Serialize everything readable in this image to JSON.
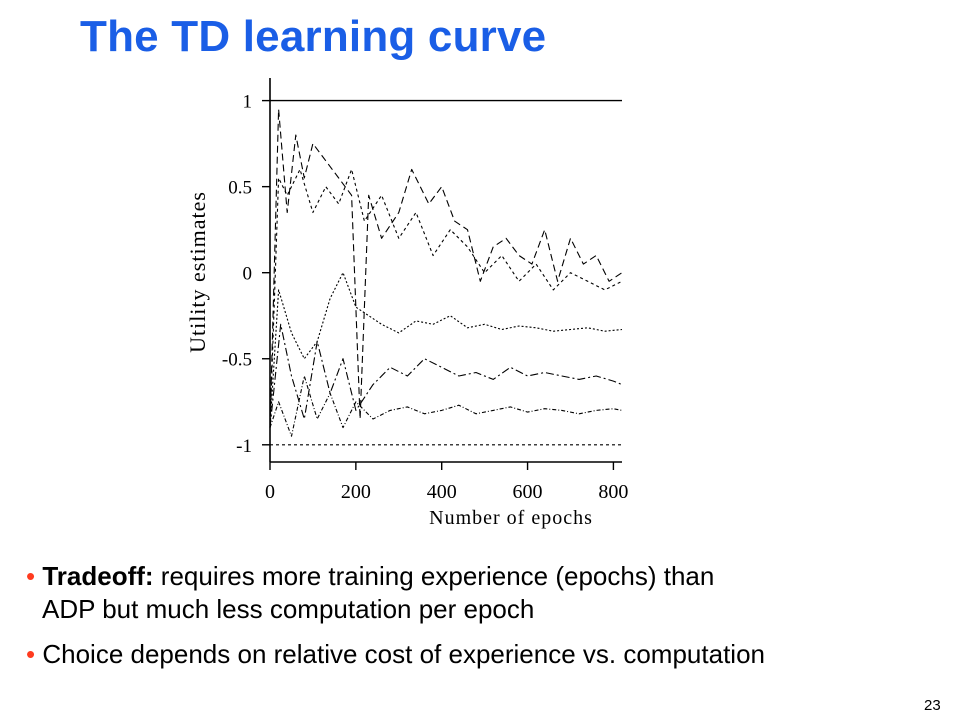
{
  "slide": {
    "title": "The TD learning curve",
    "page_number": "23",
    "accent_color": "#1a5ee6",
    "bullet_color": "#ff3b1f"
  },
  "bullets": [
    {
      "bold": "Tradeoff:",
      "text": " requires more training experience (epochs) than",
      "continuation": "ADP but much less computation per epoch"
    },
    {
      "bold": "",
      "text": "Choice depends on relative cost of experience vs. computation",
      "continuation": ""
    }
  ],
  "chart_data": {
    "type": "line",
    "xlabel": "Number of epochs",
    "ylabel": "Utility estimates",
    "xlim": [
      0,
      820
    ],
    "ylim": [
      -1.1,
      1.05
    ],
    "x_ticks": [
      "0",
      "200",
      "400",
      "600",
      "800"
    ],
    "y_ticks": [
      "1",
      "0.5",
      "0",
      "-0.5",
      "-1"
    ],
    "grid": false,
    "series": [
      {
        "dash": "solid",
        "x": [
          0,
          30,
          820
        ],
        "values": [
          1.0,
          1.0,
          1.0
        ]
      },
      {
        "dash": "7,4",
        "x": [
          0,
          20,
          40,
          60,
          80,
          100,
          130,
          160,
          190,
          210,
          230,
          260,
          300,
          330,
          370,
          400,
          430,
          460,
          490,
          520,
          550,
          580,
          610,
          640,
          670,
          700,
          730,
          760,
          790,
          820
        ],
        "values": [
          -0.9,
          0.95,
          0.35,
          0.8,
          0.55,
          0.75,
          0.65,
          0.55,
          0.45,
          -0.85,
          0.45,
          0.2,
          0.35,
          0.6,
          0.4,
          0.5,
          0.3,
          0.25,
          -0.05,
          0.15,
          0.2,
          0.1,
          0.05,
          0.25,
          -0.05,
          0.2,
          0.05,
          0.1,
          -0.05,
          0.0
        ]
      },
      {
        "dash": "3,3",
        "x": [
          0,
          20,
          40,
          70,
          100,
          130,
          160,
          190,
          220,
          260,
          300,
          340,
          380,
          420,
          460,
          500,
          540,
          580,
          620,
          660,
          700,
          740,
          780,
          820
        ],
        "values": [
          -0.9,
          0.55,
          0.45,
          0.6,
          0.35,
          0.5,
          0.4,
          0.6,
          0.3,
          0.45,
          0.2,
          0.35,
          0.1,
          0.25,
          0.15,
          0.0,
          0.1,
          -0.05,
          0.05,
          -0.1,
          0.0,
          -0.05,
          -0.1,
          -0.05
        ]
      },
      {
        "dash": "2,2",
        "x": [
          0,
          20,
          50,
          80,
          110,
          140,
          170,
          200,
          230,
          260,
          300,
          340,
          380,
          420,
          460,
          500,
          540,
          580,
          620,
          660,
          700,
          740,
          780,
          820
        ],
        "values": [
          -0.9,
          -0.1,
          -0.35,
          -0.5,
          -0.4,
          -0.15,
          0.0,
          -0.2,
          -0.25,
          -0.3,
          -0.35,
          -0.28,
          -0.3,
          -0.25,
          -0.32,
          -0.3,
          -0.33,
          -0.31,
          -0.32,
          -0.34,
          -0.33,
          -0.32,
          -0.34,
          -0.33
        ]
      },
      {
        "dash": "8,3,2,3",
        "x": [
          0,
          25,
          50,
          80,
          110,
          140,
          170,
          200,
          240,
          280,
          320,
          360,
          400,
          440,
          480,
          520,
          560,
          600,
          640,
          680,
          720,
          760,
          800,
          820
        ],
        "values": [
          -0.9,
          -0.3,
          -0.6,
          -0.85,
          -0.4,
          -0.7,
          -0.5,
          -0.8,
          -0.65,
          -0.55,
          -0.6,
          -0.5,
          -0.55,
          -0.6,
          -0.58,
          -0.62,
          -0.55,
          -0.6,
          -0.58,
          -0.6,
          -0.62,
          -0.6,
          -0.63,
          -0.65
        ]
      },
      {
        "dash": "4,2,1,2",
        "x": [
          0,
          20,
          50,
          80,
          110,
          140,
          170,
          200,
          240,
          280,
          320,
          360,
          400,
          440,
          480,
          520,
          560,
          600,
          640,
          680,
          720,
          760,
          800,
          820
        ],
        "values": [
          -0.9,
          -0.75,
          -0.95,
          -0.6,
          -0.85,
          -0.7,
          -0.9,
          -0.75,
          -0.85,
          -0.8,
          -0.78,
          -0.82,
          -0.8,
          -0.77,
          -0.82,
          -0.8,
          -0.78,
          -0.81,
          -0.79,
          -0.8,
          -0.82,
          -0.8,
          -0.79,
          -0.8
        ]
      },
      {
        "dash": "3,3",
        "x": [
          0,
          820
        ],
        "values": [
          -1.0,
          -1.0
        ]
      }
    ]
  }
}
